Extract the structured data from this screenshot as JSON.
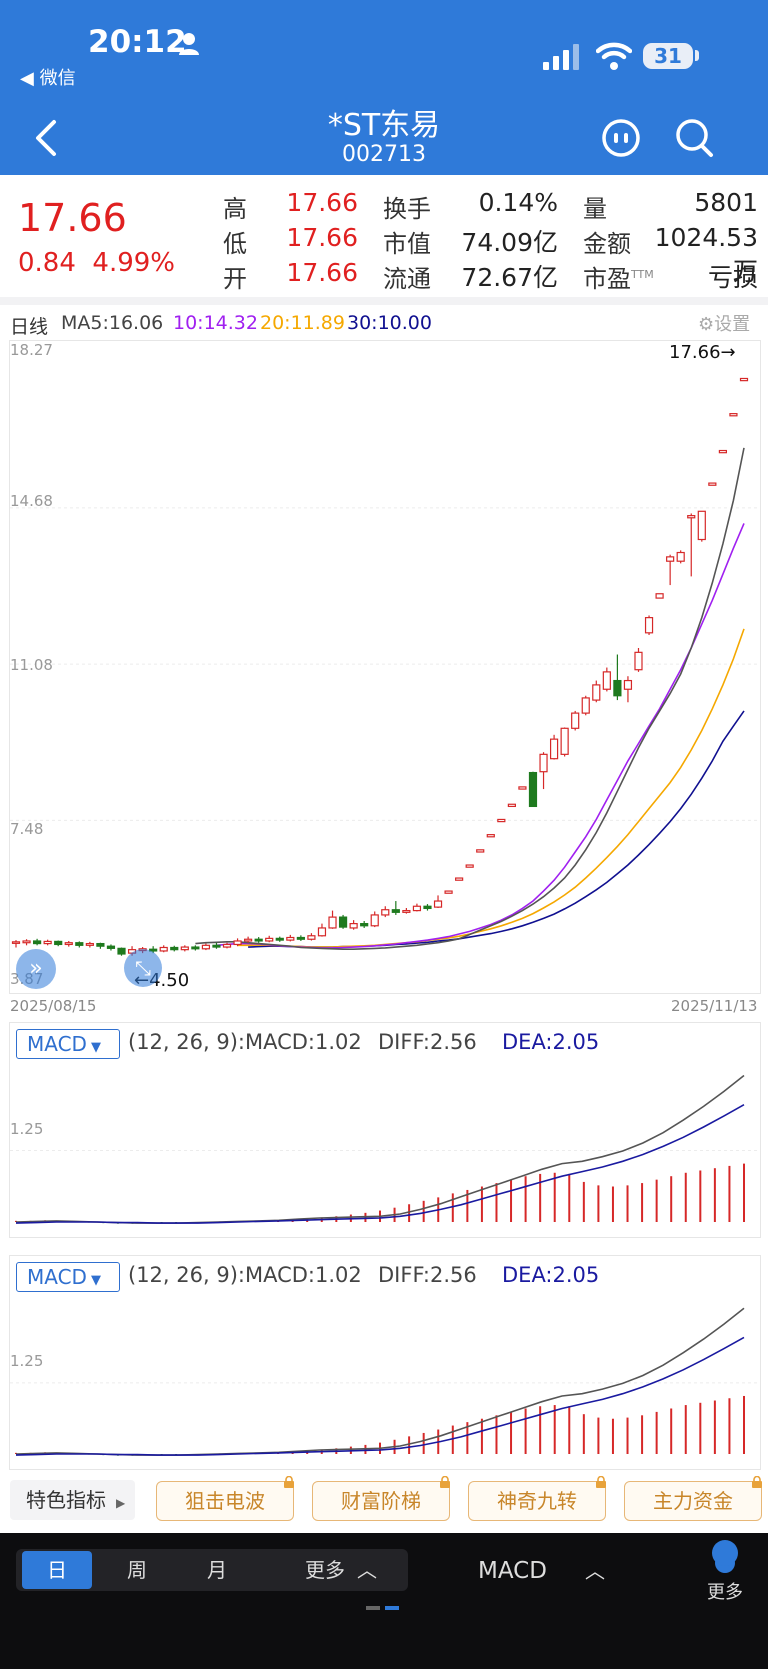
{
  "status_bar": {
    "time": "20:12",
    "back_app": "◀ 微信",
    "battery": "31"
  },
  "header": {
    "title": "*ST东易",
    "code": "002713"
  },
  "quote": {
    "price": "17.66",
    "change": "0.84  4.99%",
    "stats": [
      {
        "label": "高",
        "value": "17.66",
        "red": true
      },
      {
        "label": "低",
        "value": "17.66",
        "red": true
      },
      {
        "label": "开",
        "value": "17.66",
        "red": true
      },
      {
        "label": "换手",
        "value": "0.14%",
        "red": false
      },
      {
        "label": "市值",
        "value": "74.09亿",
        "red": false
      },
      {
        "label": "流通",
        "value": "72.67亿",
        "red": false
      },
      {
        "label": "量",
        "value": "5801",
        "red": false
      },
      {
        "label": "金额",
        "value": "1024.53万",
        "red": false
      },
      {
        "label": "市盈",
        "label_sup": "TTM",
        "value": "亏损",
        "red": false
      }
    ]
  },
  "ma_bar": {
    "period": "日线",
    "ma5": "MA5:16.06",
    "ma10": "10:14.32",
    "ma20": "20:11.89",
    "ma30": "30:10.00",
    "settings": "设置",
    "colors": {
      "ma5": "#555555",
      "ma10": "#a020f0",
      "ma20": "#f5a800",
      "ma30": "#101090"
    }
  },
  "chart_data": {
    "type": "candlestick",
    "y_ticks": [
      "18.27",
      "14.68",
      "11.08",
      "7.48",
      "3.87"
    ],
    "ylim": [
      3.87,
      18.27
    ],
    "date_start": "2025/08/15",
    "date_end": "2025/11/13",
    "last_price_label": "17.66→",
    "low_marker_label": "←4.50",
    "candles": [
      [
        4.65,
        4.68,
        4.55,
        4.72
      ],
      [
        4.66,
        4.7,
        4.6,
        4.74
      ],
      [
        4.7,
        4.64,
        4.6,
        4.75
      ],
      [
        4.64,
        4.69,
        4.6,
        4.73
      ],
      [
        4.69,
        4.62,
        4.58,
        4.71
      ],
      [
        4.62,
        4.66,
        4.57,
        4.7
      ],
      [
        4.66,
        4.6,
        4.55,
        4.69
      ],
      [
        4.6,
        4.64,
        4.55,
        4.68
      ],
      [
        4.64,
        4.58,
        4.52,
        4.66
      ],
      [
        4.58,
        4.53,
        4.48,
        4.62
      ],
      [
        4.53,
        4.4,
        4.36,
        4.55
      ],
      [
        4.42,
        4.5,
        4.36,
        4.58
      ],
      [
        4.48,
        4.52,
        4.42,
        4.56
      ],
      [
        4.51,
        4.47,
        4.42,
        4.58
      ],
      [
        4.47,
        4.55,
        4.44,
        4.6
      ],
      [
        4.55,
        4.5,
        4.46,
        4.59
      ],
      [
        4.5,
        4.56,
        4.46,
        4.6
      ],
      [
        4.56,
        4.52,
        4.48,
        4.6
      ],
      [
        4.52,
        4.6,
        4.49,
        4.64
      ],
      [
        4.6,
        4.56,
        4.52,
        4.66
      ],
      [
        4.56,
        4.62,
        4.53,
        4.66
      ],
      [
        4.62,
        4.7,
        4.58,
        4.76
      ],
      [
        4.7,
        4.74,
        4.66,
        4.8
      ],
      [
        4.74,
        4.7,
        4.66,
        4.79
      ],
      [
        4.7,
        4.76,
        4.67,
        4.82
      ],
      [
        4.76,
        4.72,
        4.68,
        4.8
      ],
      [
        4.72,
        4.78,
        4.69,
        4.84
      ],
      [
        4.78,
        4.74,
        4.7,
        4.83
      ],
      [
        4.74,
        4.82,
        4.71,
        4.88
      ],
      [
        4.82,
        5.0,
        4.8,
        5.1
      ],
      [
        5.0,
        5.25,
        4.98,
        5.4
      ],
      [
        5.25,
        5.02,
        4.98,
        5.3
      ],
      [
        5.0,
        5.1,
        4.96,
        5.18
      ],
      [
        5.1,
        5.05,
        5.0,
        5.16
      ],
      [
        5.05,
        5.3,
        5.02,
        5.38
      ],
      [
        5.3,
        5.42,
        5.25,
        5.5
      ],
      [
        5.42,
        5.36,
        5.3,
        5.62
      ],
      [
        5.36,
        5.4,
        5.33,
        5.46
      ],
      [
        5.4,
        5.5,
        5.38,
        5.56
      ],
      [
        5.5,
        5.45,
        5.4,
        5.55
      ],
      [
        5.48,
        5.62,
        5.46,
        5.75
      ],
      [
        5.8,
        5.85,
        5.8,
        5.85
      ],
      [
        6.1,
        6.15,
        6.1,
        6.15
      ],
      [
        6.4,
        6.45,
        6.4,
        6.45
      ],
      [
        6.75,
        6.8,
        6.75,
        6.8
      ],
      [
        7.1,
        7.15,
        7.1,
        7.15
      ],
      [
        7.45,
        7.5,
        7.45,
        7.5
      ],
      [
        7.8,
        7.85,
        7.8,
        7.85
      ],
      [
        8.2,
        8.25,
        8.2,
        8.25
      ],
      [
        8.58,
        7.8,
        7.8,
        8.6
      ],
      [
        8.6,
        9.0,
        8.2,
        9.05
      ],
      [
        8.9,
        9.35,
        8.88,
        9.45
      ],
      [
        9.0,
        9.6,
        8.95,
        9.62
      ],
      [
        9.6,
        9.95,
        9.55,
        10.0
      ],
      [
        9.95,
        10.3,
        9.9,
        10.35
      ],
      [
        10.25,
        10.6,
        10.2,
        10.7
      ],
      [
        10.5,
        10.9,
        10.45,
        11.0
      ],
      [
        10.7,
        10.35,
        10.25,
        11.3
      ],
      [
        10.5,
        10.7,
        10.2,
        10.8
      ],
      [
        10.95,
        11.35,
        10.9,
        11.45
      ],
      [
        11.8,
        12.15,
        11.75,
        12.2
      ],
      [
        12.6,
        12.7,
        12.6,
        12.7
      ],
      [
        13.45,
        13.55,
        12.9,
        13.6
      ],
      [
        13.45,
        13.65,
        13.4,
        13.7
      ],
      [
        14.45,
        14.5,
        13.1,
        14.55
      ],
      [
        13.95,
        14.6,
        13.9,
        14.6
      ],
      [
        15.2,
        15.25,
        15.2,
        15.25
      ],
      [
        15.95,
        16.0,
        15.95,
        16.0
      ],
      [
        16.8,
        16.85,
        16.8,
        16.85
      ],
      [
        17.61,
        17.66,
        17.61,
        17.66
      ]
    ],
    "ma_lines": {
      "ma5": [
        4.64,
        4.66,
        4.67,
        4.68,
        4.68,
        4.66,
        4.64,
        4.62,
        4.6,
        4.58,
        4.55,
        4.54,
        4.53,
        4.52,
        4.51,
        4.51,
        4.52,
        4.53,
        4.54,
        4.56,
        4.58,
        4.6,
        4.63,
        4.66,
        4.7,
        4.75,
        4.85,
        4.95,
        5.05,
        5.15,
        5.27,
        5.4,
        5.55,
        5.72,
        5.92,
        6.15,
        6.45,
        6.8,
        7.2,
        7.65,
        8.15,
        8.65,
        9.15,
        9.6,
        10.0,
        10.4,
        10.85,
        11.45,
        12.15,
        12.95,
        13.85,
        14.85,
        16.06
      ],
      "ma10": [
        4.6,
        4.62,
        4.64,
        4.64,
        4.63,
        4.61,
        4.59,
        4.57,
        4.56,
        4.55,
        4.54,
        4.54,
        4.55,
        4.56,
        4.57,
        4.59,
        4.61,
        4.63,
        4.66,
        4.69,
        4.72,
        4.76,
        4.8,
        4.86,
        4.92,
        5.0,
        5.08,
        5.18,
        5.3,
        5.45,
        5.62,
        5.85,
        6.1,
        6.4,
        6.75,
        7.1,
        7.5,
        7.95,
        8.4,
        8.85,
        9.25,
        9.65,
        10.05,
        10.5,
        10.95,
        11.45,
        12.0,
        12.55,
        13.15,
        13.75,
        14.32
      ],
      "ma20": [
        4.6,
        4.6,
        4.61,
        4.6,
        4.59,
        4.58,
        4.57,
        4.56,
        4.56,
        4.56,
        4.57,
        4.58,
        4.59,
        4.6,
        4.62,
        4.64,
        4.66,
        4.68,
        4.71,
        4.74,
        4.77,
        4.81,
        4.86,
        4.92,
        4.98,
        5.05,
        5.13,
        5.22,
        5.33,
        5.46,
        5.6,
        5.76,
        5.94,
        6.15,
        6.38,
        6.62,
        6.88,
        7.15,
        7.45,
        7.75,
        8.05,
        8.35,
        8.7,
        9.1,
        9.55,
        10.05,
        10.6,
        11.2,
        11.89
      ],
      "ma30": [
        4.56,
        4.57,
        4.58,
        4.58,
        4.57,
        4.57,
        4.56,
        4.56,
        4.56,
        4.57,
        4.57,
        4.58,
        4.59,
        4.6,
        4.62,
        4.63,
        4.65,
        4.67,
        4.7,
        4.72,
        4.75,
        4.79,
        4.83,
        4.87,
        4.92,
        4.98,
        5.05,
        5.13,
        5.22,
        5.32,
        5.44,
        5.57,
        5.72,
        5.88,
        6.05,
        6.25,
        6.45,
        6.68,
        6.92,
        7.18,
        7.45,
        7.75,
        8.08,
        8.45,
        8.85,
        9.3,
        9.65,
        10.0
      ]
    },
    "macd_params": "(12, 26, 9):MACD:1.02",
    "diff": "DIFF:2.56",
    "dea": "DEA:2.05",
    "macd_tick": "1.25",
    "diff_line": [
      0.0,
      0.01,
      0.02,
      0.01,
      0.0,
      -0.01,
      -0.02,
      -0.02,
      -0.02,
      -0.01,
      0.0,
      0.01,
      0.02,
      0.03,
      0.05,
      0.07,
      0.08,
      0.09,
      0.1,
      0.14,
      0.22,
      0.32,
      0.44,
      0.56,
      0.68,
      0.8,
      0.92,
      1.02,
      1.06,
      1.14,
      1.24,
      1.38,
      1.56,
      1.78,
      2.02,
      2.28,
      2.56
    ],
    "dea_line": [
      -0.02,
      -0.01,
      0.0,
      0.0,
      0.0,
      -0.01,
      -0.01,
      -0.02,
      -0.02,
      -0.02,
      -0.01,
      0.0,
      0.01,
      0.02,
      0.03,
      0.04,
      0.05,
      0.06,
      0.07,
      0.1,
      0.15,
      0.22,
      0.3,
      0.4,
      0.5,
      0.6,
      0.7,
      0.8,
      0.88,
      0.96,
      1.06,
      1.18,
      1.32,
      1.48,
      1.66,
      1.85,
      2.05
    ],
    "macd_bars": [
      0.02,
      0.02,
      0.03,
      0.02,
      0.01,
      -0.01,
      -0.02,
      -0.03,
      -0.03,
      -0.02,
      -0.02,
      -0.01,
      -0.01,
      0.0,
      0.01,
      0.01,
      0.02,
      0.03,
      0.03,
      0.04,
      0.06,
      0.08,
      0.1,
      0.13,
      0.16,
      0.2,
      0.25,
      0.31,
      0.37,
      0.43,
      0.5,
      0.56,
      0.62,
      0.68,
      0.74,
      0.8,
      0.84,
      0.86,
      0.84,
      0.7,
      0.64,
      0.62,
      0.64,
      0.68,
      0.74,
      0.8,
      0.86,
      0.9,
      0.94,
      0.98,
      1.02
    ]
  },
  "feature_tabs": {
    "label": "特色指标",
    "items": [
      "狙击电波",
      "财富阶梯",
      "神奇九转",
      "主力资金"
    ]
  },
  "bottom_bar": {
    "periods": [
      "日",
      "周",
      "月"
    ],
    "more": "更多",
    "indicator": "MACD",
    "more_right": "更多"
  }
}
